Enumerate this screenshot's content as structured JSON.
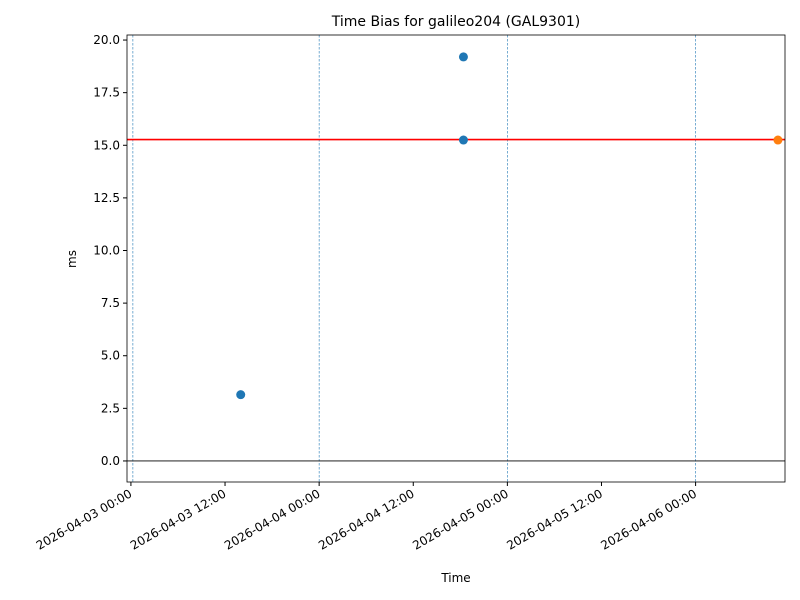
{
  "chart_data": {
    "type": "scatter",
    "title": "Time Bias for galileo204 (GAL9301)",
    "xlabel": "Time",
    "ylabel": "ms",
    "series": [
      {
        "color": "#1f77b4",
        "x": [
          "2026-04-03 14:00",
          "2026-04-04 18:24",
          "2026-04-04 18:24"
        ],
        "values": [
          3.15,
          19.2,
          15.25
        ]
      },
      {
        "color": "#ff7f0e",
        "x": [
          "2026-04-06 10:30"
        ],
        "values": [
          15.25
        ]
      }
    ],
    "hlines": [
      {
        "value": 15.27,
        "color": "#ff0000"
      },
      {
        "value": 0,
        "color": "#000000"
      }
    ],
    "vlines": {
      "x": [
        "2026-04-03 00:15",
        "2026-04-04 00:00",
        "2026-04-05 00:00",
        "2026-04-06 00:00"
      ],
      "color": "#1f77b4"
    },
    "xlim": [
      "2026-04-02 23:30",
      "2026-04-06 11:24"
    ],
    "xticks": [
      "2026-04-03 00:00",
      "2026-04-03 12:00",
      "2026-04-04 00:00",
      "2026-04-04 12:00",
      "2026-04-05 00:00",
      "2026-04-05 12:00",
      "2026-04-06 00:00"
    ],
    "ylim": [
      -1.0,
      20.24
    ],
    "yticks": [
      {
        "value": 0,
        "label": "0.0"
      },
      {
        "value": 2.5,
        "label": "2.5"
      },
      {
        "value": 5,
        "label": "5.0"
      },
      {
        "value": 7.5,
        "label": "7.5"
      },
      {
        "value": 10,
        "label": "10.0"
      },
      {
        "value": 12.5,
        "label": "12.5"
      },
      {
        "value": 15,
        "label": "15.0"
      },
      {
        "value": 17.5,
        "label": "17.5"
      },
      {
        "value": 20,
        "label": "20.0"
      }
    ],
    "grid": false
  }
}
